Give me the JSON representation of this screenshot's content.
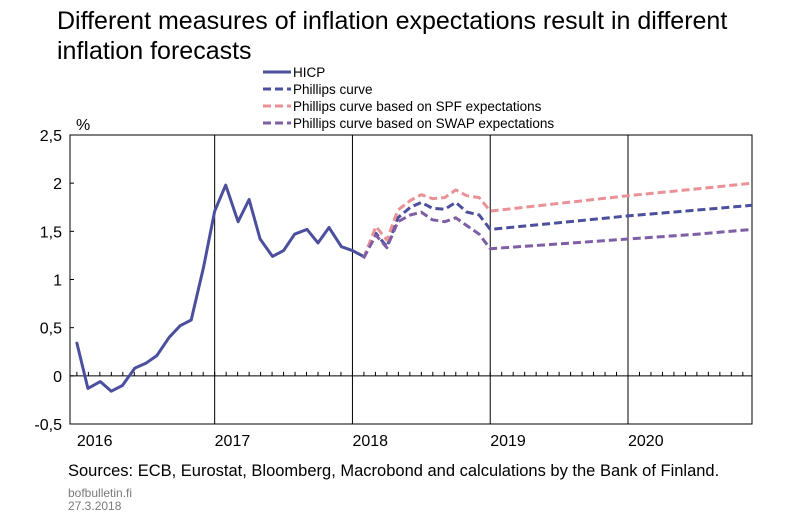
{
  "title": "Different measures of inflation expectations result in different inflation forecasts",
  "source": "Sources: ECB, Eurostat, Bloomberg, Macrobond and calculations by the Bank of Finland.",
  "site": "bofbulletin.fi",
  "date": "27.3.2018",
  "chart_data": {
    "type": "line",
    "ylabel": "%",
    "ylim": [
      -0.5,
      2.5
    ],
    "y_ticks": [
      -0.5,
      0,
      0.5,
      1,
      1.5,
      2,
      2.5
    ],
    "y_tick_labels": [
      "-0,5",
      "0",
      "0,5",
      "1",
      "1,5",
      "2",
      "2,5"
    ],
    "xlim": [
      2015.95,
      2020.9
    ],
    "x_ticks": [
      2016,
      2017,
      2018,
      2019,
      2020
    ],
    "x_tick_labels": [
      "2016",
      "2017",
      "2018",
      "2019",
      "2020"
    ],
    "grid": "vertical lines at year boundaries",
    "legend_position": "top-center",
    "series": [
      {
        "name": "HICP",
        "style": "solid",
        "color": "#4b4f9e",
        "points": [
          [
            2016.0,
            0.34
          ],
          [
            2016.08,
            -0.13
          ],
          [
            2016.17,
            -0.06
          ],
          [
            2016.25,
            -0.16
          ],
          [
            2016.33,
            -0.1
          ],
          [
            2016.42,
            0.08
          ],
          [
            2016.5,
            0.13
          ],
          [
            2016.58,
            0.21
          ],
          [
            2016.67,
            0.4
          ],
          [
            2016.75,
            0.52
          ],
          [
            2016.83,
            0.58
          ],
          [
            2016.92,
            1.13
          ],
          [
            2017.0,
            1.71
          ],
          [
            2017.08,
            1.98
          ],
          [
            2017.17,
            1.6
          ],
          [
            2017.25,
            1.83
          ],
          [
            2017.33,
            1.42
          ],
          [
            2017.42,
            1.24
          ],
          [
            2017.5,
            1.3
          ],
          [
            2017.58,
            1.47
          ],
          [
            2017.67,
            1.52
          ],
          [
            2017.75,
            1.38
          ],
          [
            2017.83,
            1.54
          ],
          [
            2017.92,
            1.34
          ],
          [
            2018.0,
            1.3
          ],
          [
            2018.08,
            1.24
          ]
        ]
      },
      {
        "name": "Phillips curve",
        "style": "dashed",
        "color": "#4b4f9e",
        "points": [
          [
            2018.08,
            1.22
          ],
          [
            2018.17,
            1.48
          ],
          [
            2018.25,
            1.34
          ],
          [
            2018.33,
            1.64
          ],
          [
            2018.42,
            1.75
          ],
          [
            2018.5,
            1.8
          ],
          [
            2018.58,
            1.74
          ],
          [
            2018.67,
            1.73
          ],
          [
            2018.75,
            1.8
          ],
          [
            2018.83,
            1.7
          ],
          [
            2018.92,
            1.67
          ],
          [
            2019.0,
            1.52
          ],
          [
            2019.5,
            1.59
          ],
          [
            2020.0,
            1.66
          ],
          [
            2020.5,
            1.72
          ],
          [
            2020.9,
            1.77
          ]
        ]
      },
      {
        "name": "Phillips curve based on SPF expectations",
        "style": "dashed",
        "color": "#ea9196",
        "points": [
          [
            2018.08,
            1.22
          ],
          [
            2018.17,
            1.55
          ],
          [
            2018.25,
            1.41
          ],
          [
            2018.33,
            1.72
          ],
          [
            2018.42,
            1.82
          ],
          [
            2018.5,
            1.88
          ],
          [
            2018.58,
            1.84
          ],
          [
            2018.67,
            1.85
          ],
          [
            2018.75,
            1.93
          ],
          [
            2018.83,
            1.87
          ],
          [
            2018.92,
            1.85
          ],
          [
            2019.0,
            1.71
          ],
          [
            2019.5,
            1.79
          ],
          [
            2020.0,
            1.87
          ],
          [
            2020.5,
            1.94
          ],
          [
            2020.9,
            2.0
          ]
        ]
      },
      {
        "name": "Phillips curve based on SWAP expectations",
        "style": "dashed",
        "color": "#7e5ea5",
        "points": [
          [
            2018.08,
            1.22
          ],
          [
            2018.17,
            1.46
          ],
          [
            2018.25,
            1.33
          ],
          [
            2018.33,
            1.6
          ],
          [
            2018.42,
            1.67
          ],
          [
            2018.5,
            1.7
          ],
          [
            2018.58,
            1.62
          ],
          [
            2018.67,
            1.6
          ],
          [
            2018.75,
            1.64
          ],
          [
            2018.83,
            1.56
          ],
          [
            2018.92,
            1.47
          ],
          [
            2019.0,
            1.32
          ],
          [
            2019.5,
            1.37
          ],
          [
            2020.0,
            1.42
          ],
          [
            2020.5,
            1.47
          ],
          [
            2020.9,
            1.52
          ]
        ]
      }
    ]
  }
}
